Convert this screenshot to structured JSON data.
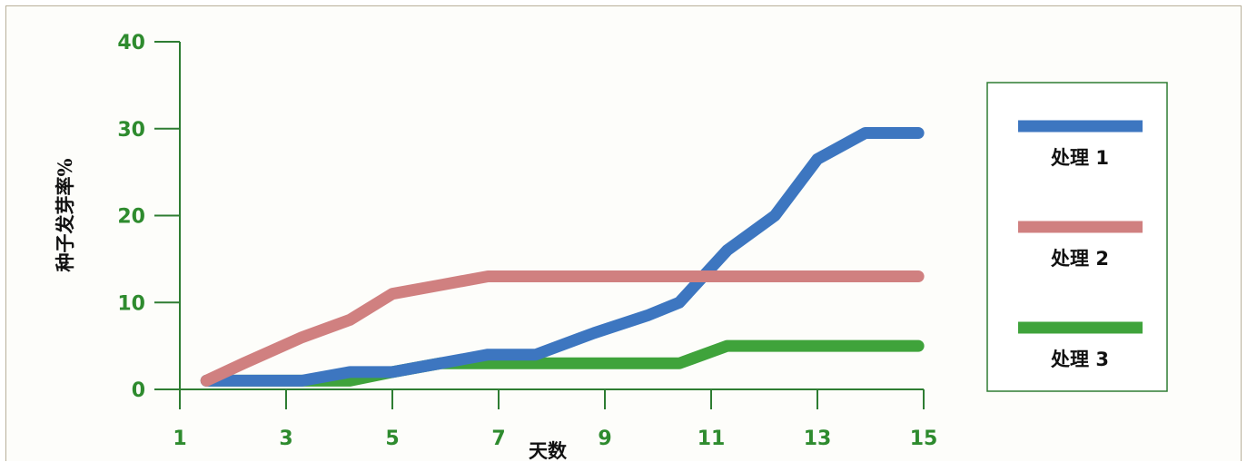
{
  "chart_data": {
    "type": "line",
    "xlabel": "天数",
    "ylabel": "种子发芽率%",
    "xlim": [
      1,
      15
    ],
    "ylim": [
      0,
      40
    ],
    "x_ticks": [
      1,
      3,
      5,
      7,
      9,
      11,
      13,
      15
    ],
    "y_ticks": [
      0,
      10,
      20,
      30,
      40
    ],
    "grid": false,
    "legend_position": "right",
    "series": [
      {
        "name": "处理 1",
        "color": "#3d76c0",
        "x": [
          1.5,
          3.3,
          4.2,
          5.0,
          5.9,
          6.8,
          7.7,
          8.8,
          9.8,
          10.4,
          11.3,
          12.2,
          13.0,
          13.9,
          14.9
        ],
        "y": [
          1,
          1,
          2,
          2,
          3,
          4,
          4,
          6.5,
          8.5,
          10,
          16,
          20,
          26.5,
          29.5,
          29.5
        ]
      },
      {
        "name": "处理 2",
        "color": "#d08080",
        "x": [
          1.5,
          2.2,
          3.3,
          4.2,
          5.0,
          5.9,
          6.8,
          8.0,
          10.0,
          12.0,
          14.9
        ],
        "y": [
          1,
          3,
          6,
          8,
          11,
          12,
          13,
          13,
          13,
          13,
          13
        ]
      },
      {
        "name": "处理 3",
        "color": "#3fa33b",
        "x": [
          1.5,
          3.3,
          4.2,
          5.0,
          5.9,
          6.8,
          7.7,
          8.8,
          9.8,
          10.4,
          11.3,
          12.2,
          13.0,
          13.9,
          14.9
        ],
        "y": [
          1,
          1,
          1,
          2,
          3,
          3,
          3,
          3,
          3,
          3,
          5,
          5,
          5,
          5,
          5
        ]
      }
    ]
  }
}
